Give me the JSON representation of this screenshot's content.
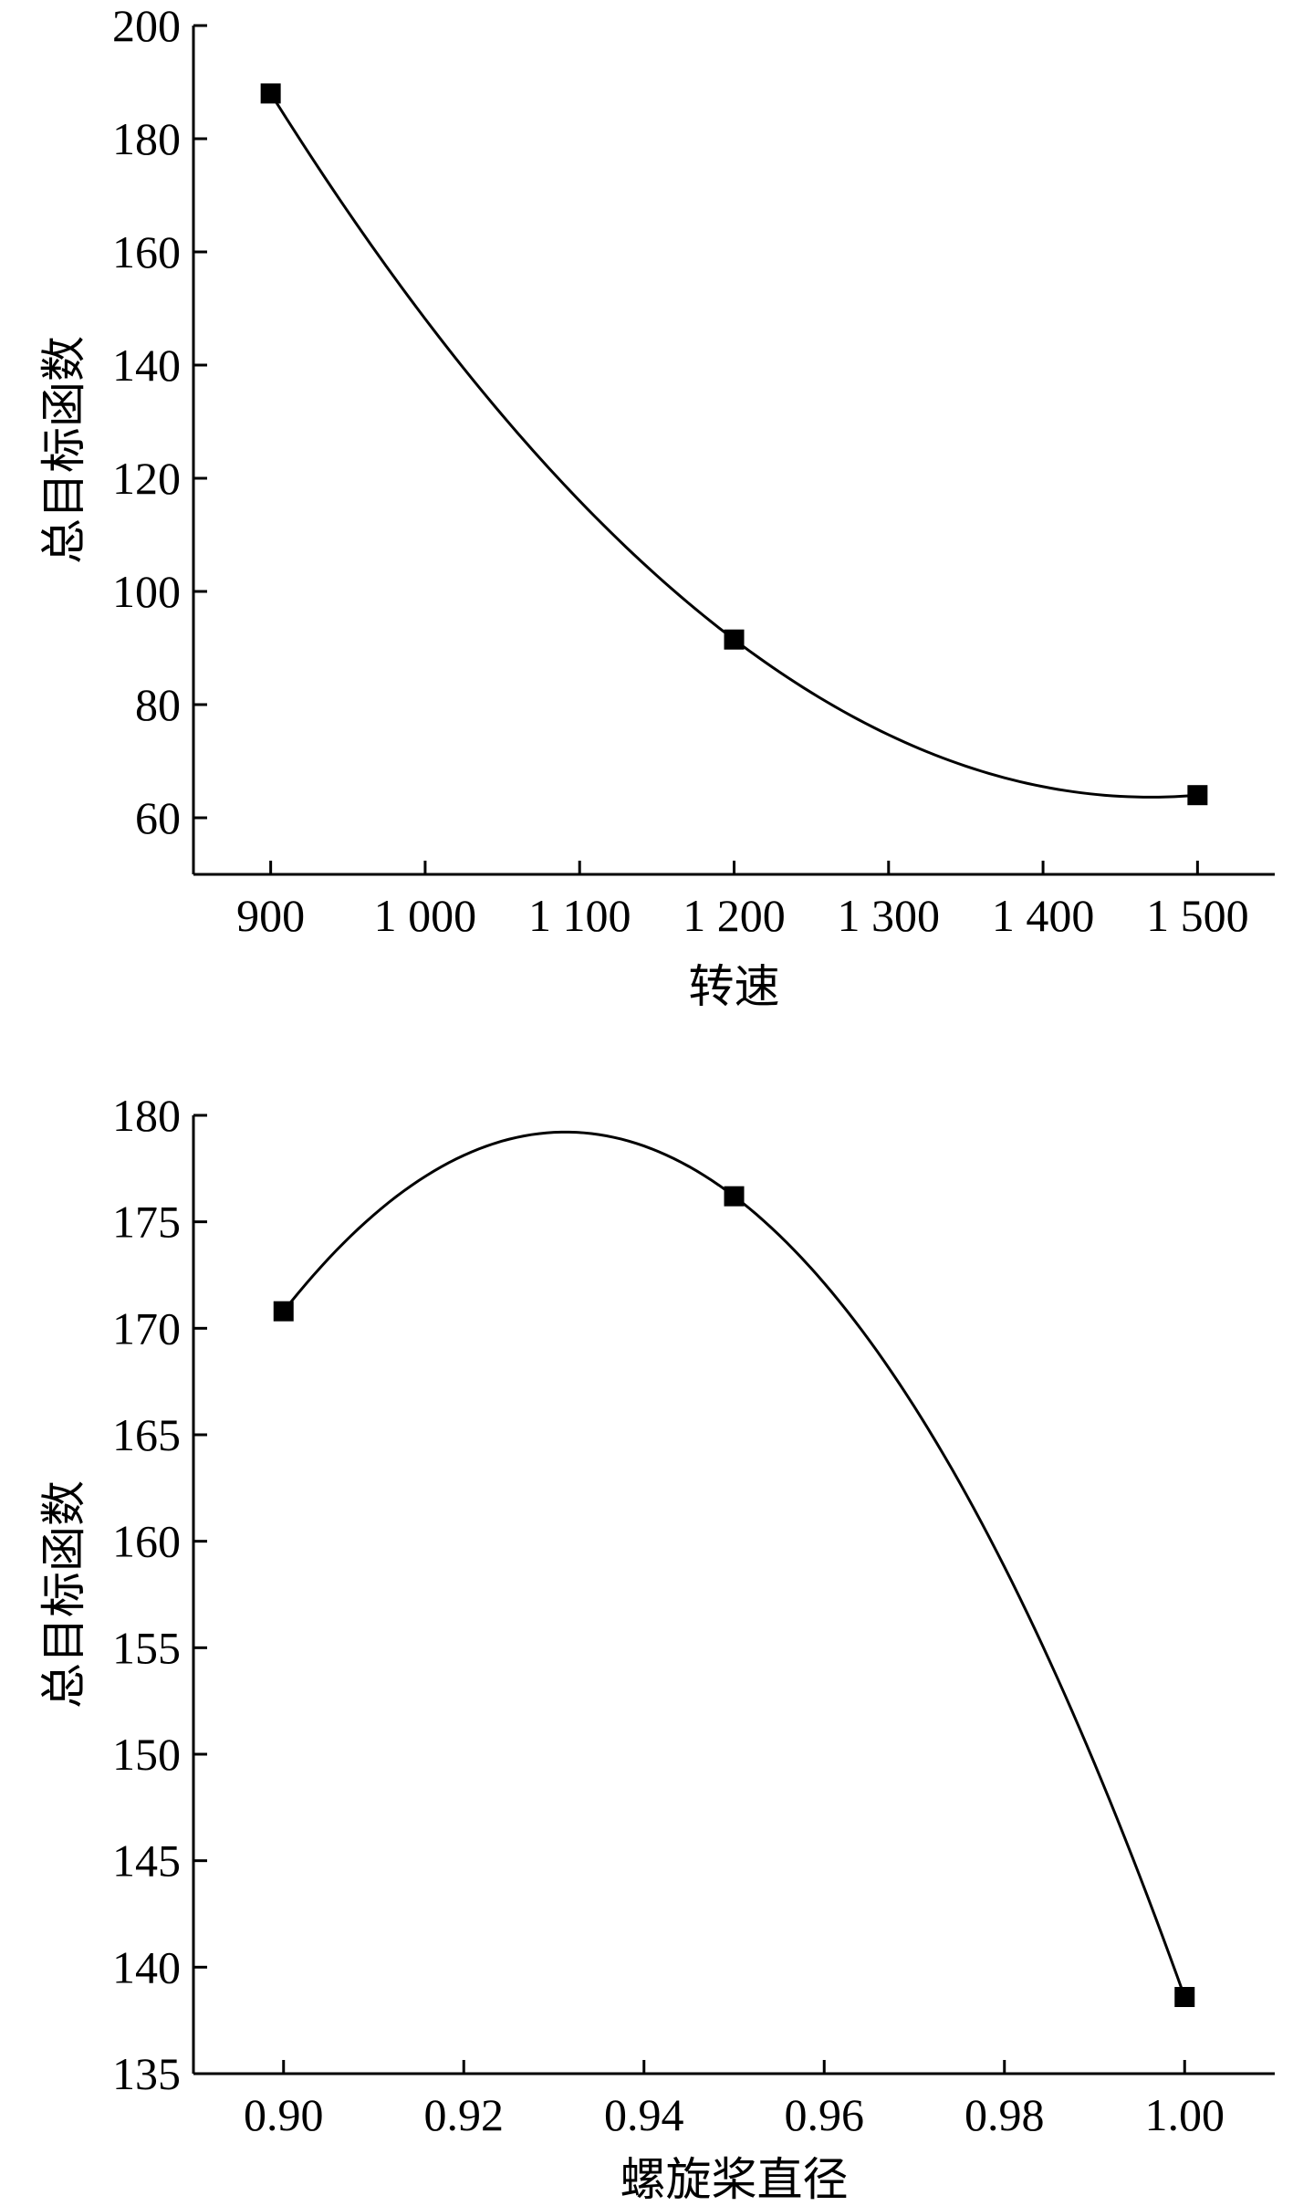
{
  "chart_data": [
    {
      "type": "line",
      "xlabel": "转速",
      "ylabel": "总目标函数",
      "xlim": [
        850,
        1550
      ],
      "ylim": [
        50,
        200
      ],
      "x_ticks": [
        900,
        1000,
        1100,
        1200,
        1300,
        1400,
        1500
      ],
      "x_tick_labels": [
        "900",
        "1 000",
        "1 100",
        "1 200",
        "1 300",
        "1 400",
        "1 500"
      ],
      "y_ticks": [
        60,
        80,
        100,
        120,
        140,
        160,
        180,
        200
      ],
      "y_tick_labels": [
        "60",
        "80",
        "100",
        "120",
        "140",
        "160",
        "180",
        "200"
      ],
      "series": [
        {
          "x": [
            900,
            1200,
            1500
          ],
          "y": [
            188,
            91.5,
            64
          ]
        }
      ],
      "smooth": true,
      "marker": "square",
      "color": "#000000"
    },
    {
      "type": "line",
      "xlabel": "螺旋桨直径",
      "ylabel": "总目标函数",
      "xlim": [
        0.89,
        1.01
      ],
      "ylim": [
        135,
        180
      ],
      "x_ticks": [
        0.9,
        0.92,
        0.94,
        0.96,
        0.98,
        1.0
      ],
      "x_tick_labels": [
        "0.90",
        "0.92",
        "0.94",
        "0.96",
        "0.98",
        "1.00"
      ],
      "y_ticks": [
        135,
        140,
        145,
        150,
        155,
        160,
        165,
        170,
        175,
        180
      ],
      "y_tick_labels": [
        "135",
        "140",
        "145",
        "150",
        "155",
        "160",
        "165",
        "170",
        "175",
        "180"
      ],
      "series": [
        {
          "x": [
            0.9,
            0.95,
            1.0
          ],
          "y": [
            170.8,
            176.2,
            138.6
          ]
        }
      ],
      "smooth": true,
      "marker": "square",
      "color": "#000000"
    }
  ]
}
